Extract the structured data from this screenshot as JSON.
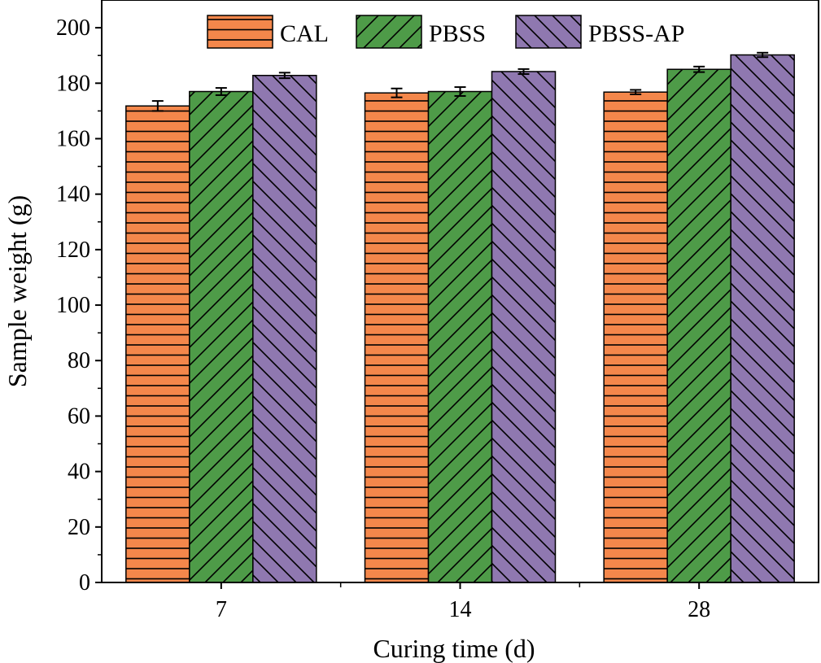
{
  "chart_data": {
    "type": "bar",
    "title": "",
    "xlabel": "Curing time (d)",
    "ylabel": "Sample weight (g)",
    "categories": [
      "7",
      "14",
      "28"
    ],
    "ylim": [
      0,
      210
    ],
    "yticks": [
      "0",
      "20",
      "40",
      "60",
      "80",
      "100",
      "120",
      "140",
      "160",
      "180",
      "200"
    ],
    "series": [
      {
        "name": "CAL",
        "values": [
          171.8,
          176.5,
          176.8
        ],
        "errors": [
          1.8,
          1.6,
          0.8
        ],
        "color": "#F4874B",
        "pattern": "horizontal"
      },
      {
        "name": "PBSS",
        "values": [
          177.0,
          177.0,
          185.0
        ],
        "errors": [
          1.3,
          1.6,
          1.0
        ],
        "color": "#4E9B48",
        "pattern": "forward-diagonal"
      },
      {
        "name": "PBSS-AP",
        "values": [
          182.8,
          184.2,
          190.2
        ],
        "errors": [
          1.0,
          0.9,
          0.8
        ],
        "color": "#8F78B0",
        "pattern": "backward-diagonal"
      }
    ],
    "legend_position": "top"
  }
}
